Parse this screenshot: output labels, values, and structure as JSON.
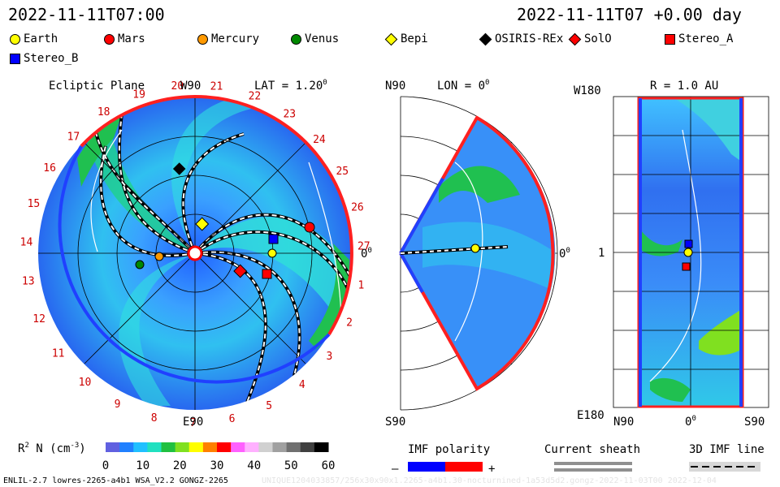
{
  "header": {
    "left_time": "2022-11-11T07:00",
    "right_time": "2022-11-11T07 +0.00 day"
  },
  "legend": [
    {
      "name": "Earth",
      "color": "#ffff00",
      "shape": "circle"
    },
    {
      "name": "Mars",
      "color": "#ff0000",
      "shape": "circle"
    },
    {
      "name": "Mercury",
      "color": "#ff9900",
      "shape": "circle"
    },
    {
      "name": "Venus",
      "color": "#008800",
      "shape": "circle"
    },
    {
      "name": "Bepi",
      "color": "#ffff00",
      "shape": "diamond"
    },
    {
      "name": "OSIRIS-REx",
      "color": "#000000",
      "shape": "diamond"
    },
    {
      "name": "SolO",
      "color": "#ff0000",
      "shape": "diamond"
    },
    {
      "name": "Stereo_A",
      "color": "#ff0000",
      "shape": "square"
    },
    {
      "name": "Stereo_B",
      "color": "#0000ff",
      "shape": "square"
    }
  ],
  "panel1": {
    "title": "Ecliptic Plane",
    "top_label": "W90",
    "lat_label": "LAT = 1.20",
    "lat_sup": "0",
    "bottom_label": "E90",
    "right_label": "0",
    "right_sup": "0",
    "rotation_ticks": [
      "20",
      "21",
      "22",
      "23",
      "24",
      "25",
      "26",
      "27",
      "1",
      "2",
      "3",
      "4",
      "5",
      "6",
      "7",
      "8",
      "9",
      "10",
      "11",
      "12",
      "13",
      "14",
      "15",
      "16",
      "17",
      "18",
      "19"
    ]
  },
  "panel2": {
    "top_left": "N90",
    "lon_label": "LON = 0",
    "lon_sup": "0",
    "bottom_left": "S90",
    "right_label": "0",
    "right_sup": "0"
  },
  "panel3": {
    "top_left": "W180",
    "r_label": "R = 1.0 AU",
    "mid_left": "1",
    "bottom_left": "E180",
    "x_ticks": [
      "N90",
      "0",
      "S90"
    ],
    "x_mid_sup": "0"
  },
  "colorbar": {
    "label": "R",
    "label_sup": "2",
    "label_rest": " N (cm",
    "label_unit_sup": "-3",
    "label_close": ")",
    "ticks": [
      "0",
      "10",
      "20",
      "30",
      "40",
      "50",
      "60"
    ],
    "colors": [
      "#6060e0",
      "#2080ff",
      "#20c0ff",
      "#20e0c0",
      "#20c040",
      "#80e020",
      "#ffff00",
      "#ff8000",
      "#ff0000",
      "#ff60ff",
      "#ffb0ff",
      "#d0d0d0",
      "#a0a0a0",
      "#707070",
      "#404040",
      "#000000"
    ]
  },
  "imf": {
    "title": "IMF polarity",
    "minus": "–",
    "plus": "+",
    "neg_color": "#0000ff",
    "pos_color": "#ff0000"
  },
  "sheath": {
    "title": "Current sheath"
  },
  "imfline": {
    "title": "3D IMF line"
  },
  "footer": {
    "left": "ENLIL-2.7 lowres-2265-a4b1 WSA_V2.2 GONGZ-2265",
    "right": "UNIQUE1204033857/256x30x90x1.2265-a4b1.30-nocturnined-1a53d5d2.gongz-2022-11-03T00  2022-12-04"
  }
}
